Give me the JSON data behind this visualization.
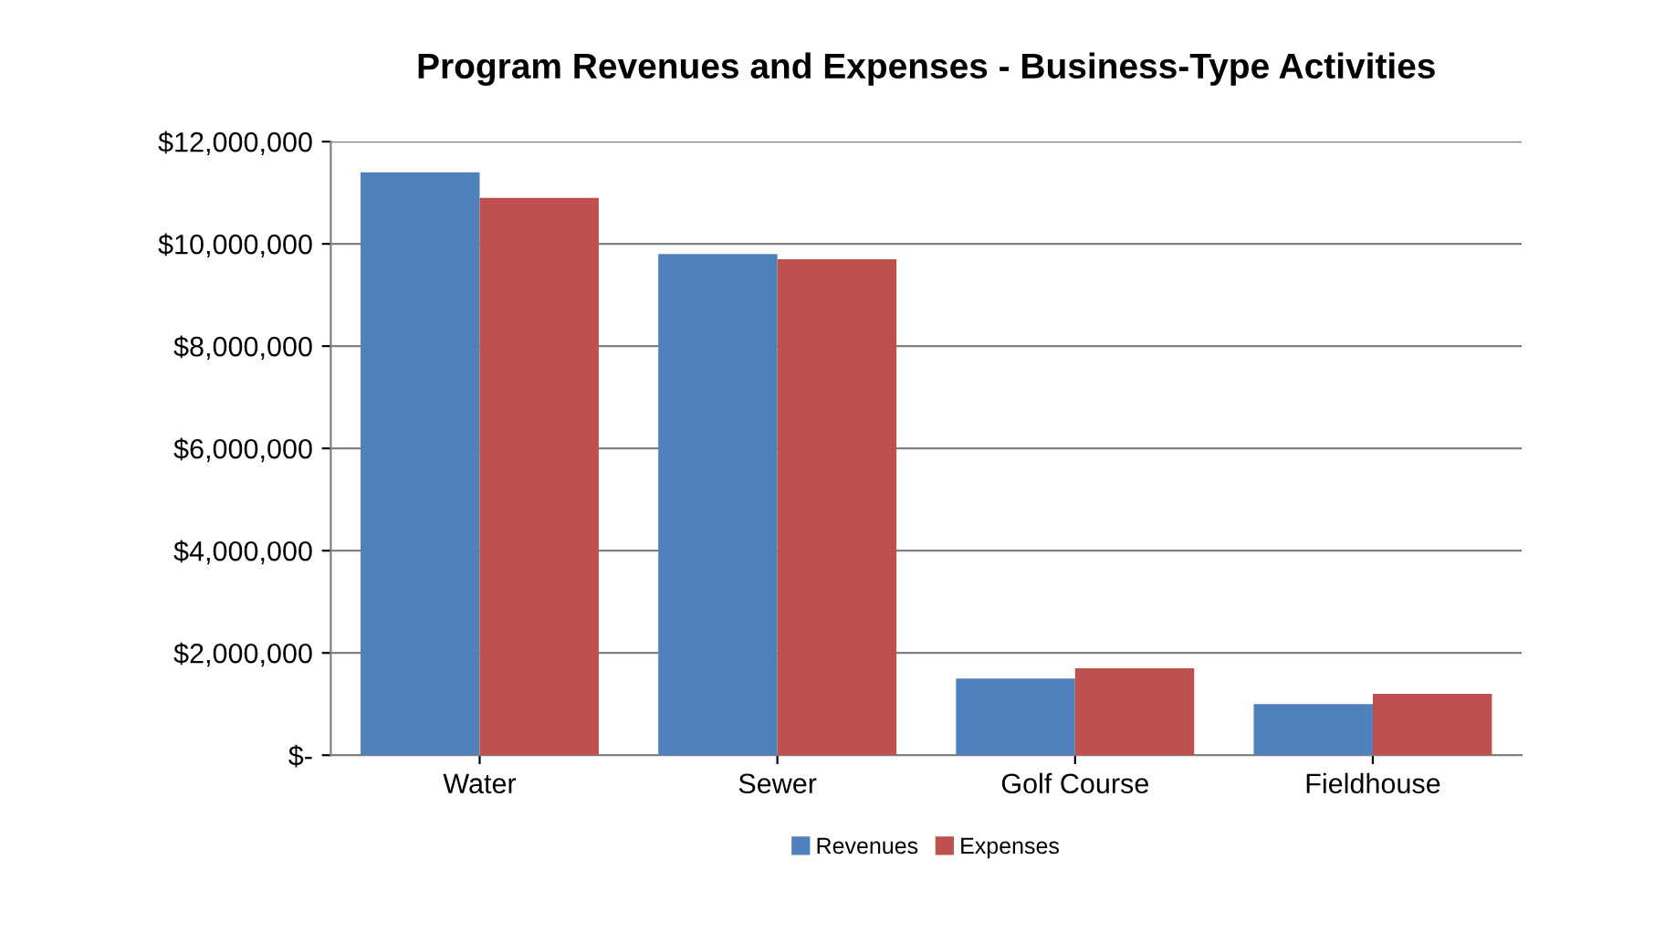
{
  "chart_data": {
    "type": "bar",
    "title": "Program Revenues and Expenses - Business-Type Activities",
    "categories": [
      "Water",
      "Sewer",
      "Golf Course",
      "Fieldhouse"
    ],
    "series": [
      {
        "name": "Revenues",
        "color": "#4f81bd",
        "values": [
          11400000,
          9800000,
          1500000,
          1000000
        ]
      },
      {
        "name": "Expenses",
        "color": "#c0504d",
        "values": [
          10900000,
          9700000,
          1700000,
          1200000
        ]
      }
    ],
    "ylim": [
      0,
      12000000
    ],
    "yticks": [
      {
        "value": 0,
        "label": "$-"
      },
      {
        "value": 2000000,
        "label": "$2,000,000"
      },
      {
        "value": 4000000,
        "label": "$4,000,000"
      },
      {
        "value": 6000000,
        "label": "$6,000,000"
      },
      {
        "value": 8000000,
        "label": "$8,000,000"
      },
      {
        "value": 10000000,
        "label": "$10,000,000"
      },
      {
        "value": 12000000,
        "label": "$12,000,000"
      }
    ],
    "grid": "y",
    "legend": "bottom"
  }
}
